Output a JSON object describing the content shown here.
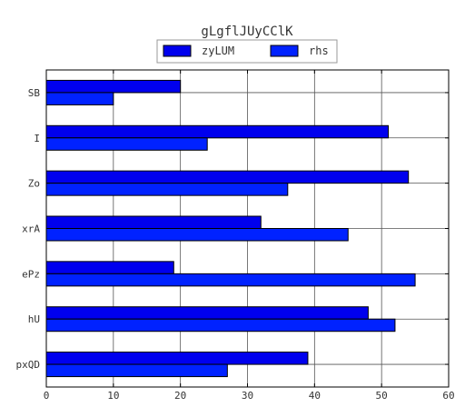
{
  "chart_data": {
    "type": "bar",
    "orientation": "horizontal",
    "title": "gLgflJUyCClK",
    "categories": [
      "SB",
      "I",
      "Zo",
      "xrA",
      "ePz",
      "hU",
      "pxQD"
    ],
    "series": [
      {
        "name": "zyLUM",
        "values": [
          20,
          51,
          54,
          32,
          19,
          48,
          39
        ],
        "color": "#0000ee"
      },
      {
        "name": "rhs",
        "values": [
          10,
          24,
          36,
          45,
          55,
          52,
          27
        ],
        "color": "#0022ff"
      }
    ],
    "xlim": [
      0,
      60
    ],
    "x_ticks": [
      0,
      10,
      20,
      30,
      40,
      50,
      60
    ],
    "grid": true,
    "legend_position": "top-center",
    "xlabel": "",
    "ylabel": ""
  }
}
